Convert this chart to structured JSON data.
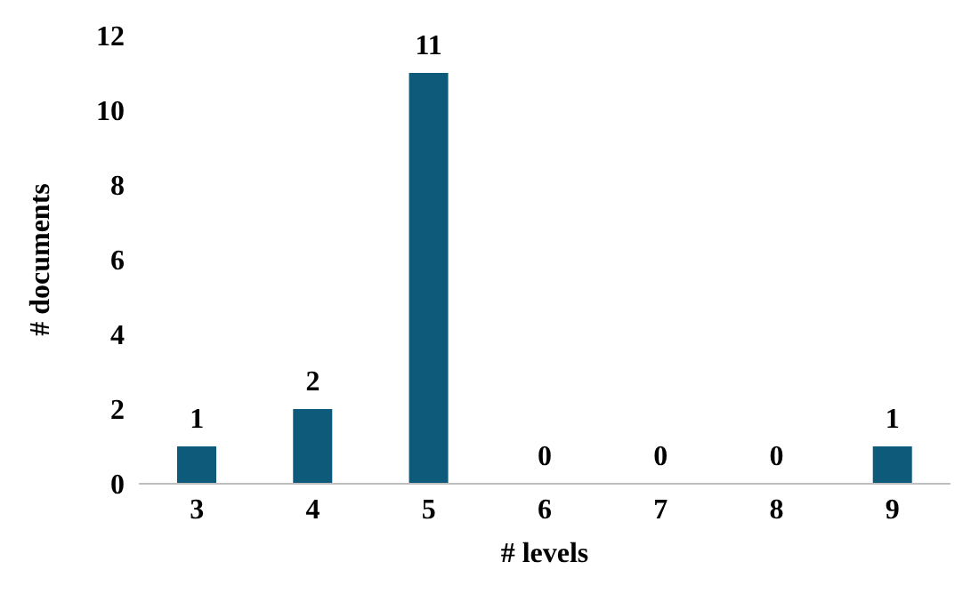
{
  "chart_data": {
    "type": "bar",
    "categories": [
      "3",
      "4",
      "5",
      "6",
      "7",
      "8",
      "9"
    ],
    "values": [
      1,
      2,
      11,
      0,
      0,
      0,
      1
    ],
    "color": "#0e5a7a",
    "xlabel": "# levels",
    "ylabel": "# documents",
    "ylim": [
      0,
      12
    ],
    "yticks": [
      0,
      2,
      4,
      6,
      8,
      10,
      12
    ],
    "data_labels": true,
    "grid": false,
    "legend": false
  }
}
